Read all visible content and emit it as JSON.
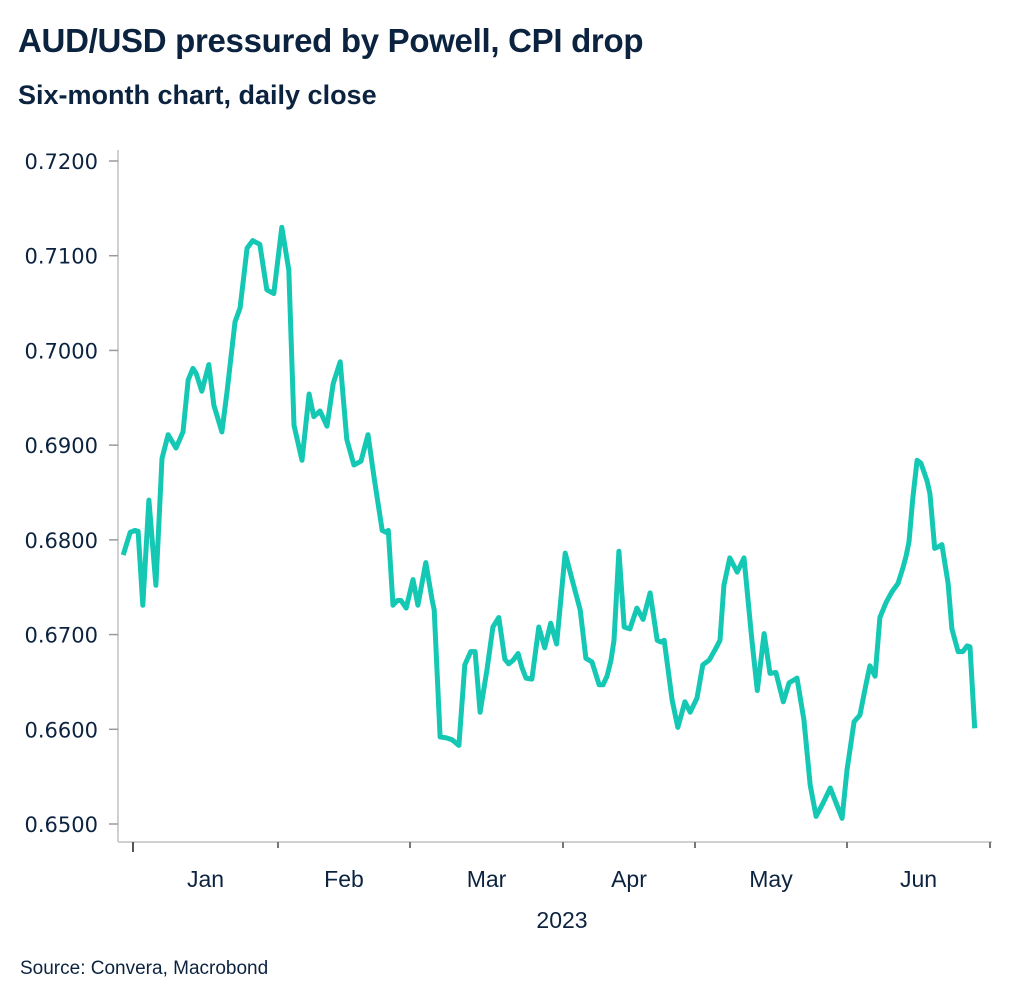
{
  "chart_data": {
    "type": "line",
    "title": "AUD/USD pressured by Powell, CPI drop",
    "subtitle": "Six-month chart, daily close",
    "source": "Source: Convera, Macrobond",
    "xlabel": "2023",
    "ylabel": "",
    "ylim": [
      0.65,
      0.72
    ],
    "yticks": [
      "0.7200",
      "0.7100",
      "0.7000",
      "0.6900",
      "0.6800",
      "0.6700",
      "0.6600",
      "0.6500"
    ],
    "ytick_values": [
      0.72,
      0.71,
      0.7,
      0.69,
      0.68,
      0.67,
      0.66,
      0.65
    ],
    "x_unit": "days since 2023-01-01",
    "xlim": [
      -3,
      181
    ],
    "month_boundaries": [
      0,
      31,
      59,
      90,
      120,
      151,
      181
    ],
    "month_labels": [
      "Jan",
      "Feb",
      "Mar",
      "Apr",
      "May",
      "Jun"
    ],
    "grid": false,
    "legend": "none",
    "line_color": "#14c8b4",
    "series": [
      {
        "name": "AUD/USD",
        "points": [
          [
            -2.1,
            0.6784
          ],
          [
            -0.6,
            0.6808
          ],
          [
            0.4,
            0.681
          ],
          [
            1.1,
            0.6809
          ],
          [
            2.1,
            0.6731
          ],
          [
            3.4,
            0.6842
          ],
          [
            4.9,
            0.6752
          ],
          [
            6.2,
            0.6886
          ],
          [
            7.5,
            0.6911
          ],
          [
            9.2,
            0.6897
          ],
          [
            10.7,
            0.6914
          ],
          [
            11.8,
            0.6969
          ],
          [
            12.8,
            0.6981
          ],
          [
            13.5,
            0.6976
          ],
          [
            14.7,
            0.6957
          ],
          [
            16.2,
            0.6985
          ],
          [
            17.3,
            0.6942
          ],
          [
            19.0,
            0.6914
          ],
          [
            20.1,
            0.6956
          ],
          [
            21.8,
            0.703
          ],
          [
            22.9,
            0.7045
          ],
          [
            24.4,
            0.7108
          ],
          [
            25.6,
            0.7116
          ],
          [
            27.1,
            0.7112
          ],
          [
            28.6,
            0.7064
          ],
          [
            30.1,
            0.706
          ],
          [
            31.8,
            0.713
          ],
          [
            33.3,
            0.7085
          ],
          [
            34.4,
            0.6921
          ],
          [
            36.1,
            0.6884
          ],
          [
            37.6,
            0.6954
          ],
          [
            38.6,
            0.693
          ],
          [
            39.9,
            0.6936
          ],
          [
            41.4,
            0.692
          ],
          [
            42.7,
            0.6965
          ],
          [
            44.2,
            0.6988
          ],
          [
            45.6,
            0.6906
          ],
          [
            47.1,
            0.6879
          ],
          [
            48.6,
            0.6883
          ],
          [
            50.1,
            0.6911
          ],
          [
            51.4,
            0.6865
          ],
          [
            53.1,
            0.681
          ],
          [
            53.9,
            0.6808
          ],
          [
            54.4,
            0.681
          ],
          [
            55.4,
            0.6731
          ],
          [
            56.3,
            0.6736
          ],
          [
            57.1,
            0.6736
          ],
          [
            58.2,
            0.6728
          ],
          [
            59.6,
            0.6758
          ],
          [
            60.6,
            0.6731
          ],
          [
            62.2,
            0.6776
          ],
          [
            63.5,
            0.6736
          ],
          [
            63.9,
            0.6726
          ],
          [
            65.1,
            0.6592
          ],
          [
            66.3,
            0.6591
          ],
          [
            67.5,
            0.6589
          ],
          [
            68.9,
            0.6583
          ],
          [
            70.1,
            0.6668
          ],
          [
            71.3,
            0.6682
          ],
          [
            72.2,
            0.6682
          ],
          [
            73.2,
            0.6618
          ],
          [
            74.6,
            0.6663
          ],
          [
            75.8,
            0.6708
          ],
          [
            77.0,
            0.6718
          ],
          [
            78.2,
            0.6674
          ],
          [
            79.0,
            0.6669
          ],
          [
            79.9,
            0.6673
          ],
          [
            80.9,
            0.668
          ],
          [
            81.7,
            0.6665
          ],
          [
            82.5,
            0.6654
          ],
          [
            83.7,
            0.6653
          ],
          [
            85.1,
            0.6708
          ],
          [
            86.3,
            0.6686
          ],
          [
            87.5,
            0.6712
          ],
          [
            88.7,
            0.669
          ],
          [
            90.5,
            0.6786
          ],
          [
            92.3,
            0.6754
          ],
          [
            93.9,
            0.6726
          ],
          [
            95.2,
            0.6675
          ],
          [
            96.6,
            0.6671
          ],
          [
            98.2,
            0.6647
          ],
          [
            99.1,
            0.6647
          ],
          [
            100.0,
            0.6656
          ],
          [
            100.9,
            0.6673
          ],
          [
            101.6,
            0.6694
          ],
          [
            102.7,
            0.6788
          ],
          [
            103.9,
            0.6708
          ],
          [
            105.2,
            0.6706
          ],
          [
            106.8,
            0.6728
          ],
          [
            108.2,
            0.6716
          ],
          [
            109.8,
            0.6744
          ],
          [
            111.4,
            0.6694
          ],
          [
            112.3,
            0.6692
          ],
          [
            113.0,
            0.6694
          ],
          [
            114.8,
            0.6631
          ],
          [
            116.1,
            0.6602
          ],
          [
            117.7,
            0.6629
          ],
          [
            118.9,
            0.6618
          ],
          [
            120.4,
            0.6633
          ],
          [
            121.6,
            0.6668
          ],
          [
            122.9,
            0.6673
          ],
          [
            124.1,
            0.6684
          ],
          [
            125.1,
            0.6694
          ],
          [
            125.9,
            0.6752
          ],
          [
            127.1,
            0.6781
          ],
          [
            128.6,
            0.6766
          ],
          [
            130.0,
            0.6781
          ],
          [
            131.6,
            0.6694
          ],
          [
            132.7,
            0.6641
          ],
          [
            134.1,
            0.6701
          ],
          [
            135.3,
            0.6659
          ],
          [
            136.5,
            0.666
          ],
          [
            138.0,
            0.6629
          ],
          [
            139.2,
            0.6649
          ],
          [
            140.8,
            0.6654
          ],
          [
            142.2,
            0.661
          ],
          [
            143.5,
            0.6541
          ],
          [
            144.7,
            0.6508
          ],
          [
            146.1,
            0.6522
          ],
          [
            147.6,
            0.6538
          ],
          [
            148.8,
            0.6522
          ],
          [
            150.0,
            0.6506
          ],
          [
            151.0,
            0.6557
          ],
          [
            152.5,
            0.6608
          ],
          [
            153.7,
            0.6615
          ],
          [
            155.0,
            0.6648
          ],
          [
            155.8,
            0.6667
          ],
          [
            156.9,
            0.6656
          ],
          [
            157.9,
            0.6718
          ],
          [
            159.2,
            0.6734
          ],
          [
            160.4,
            0.6745
          ],
          [
            161.7,
            0.6754
          ],
          [
            162.7,
            0.677
          ],
          [
            163.4,
            0.6783
          ],
          [
            164.0,
            0.6798
          ],
          [
            164.8,
            0.6844
          ],
          [
            165.7,
            0.6884
          ],
          [
            166.5,
            0.6881
          ],
          [
            167.8,
            0.6862
          ],
          [
            168.4,
            0.6849
          ],
          [
            169.4,
            0.6791
          ],
          [
            170.3,
            0.6793
          ],
          [
            170.9,
            0.6795
          ],
          [
            172.2,
            0.6754
          ],
          [
            173.0,
            0.6706
          ],
          [
            174.3,
            0.6682
          ],
          [
            175.3,
            0.6682
          ],
          [
            176.2,
            0.6688
          ],
          [
            176.8,
            0.6687
          ],
          [
            177.8,
            0.6601
          ]
        ]
      }
    ]
  }
}
